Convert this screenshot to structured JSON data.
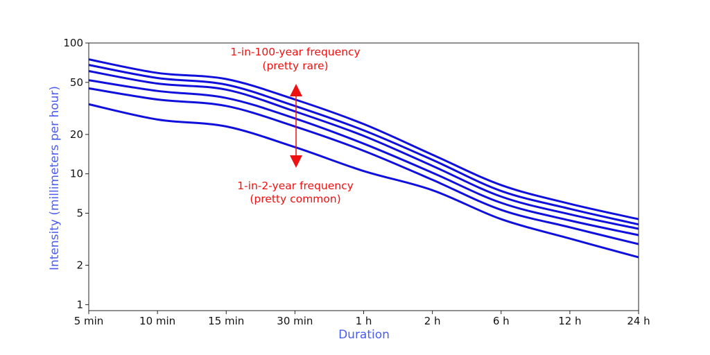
{
  "chart_data": {
    "type": "line",
    "xlabel": "Duration",
    "ylabel": "Intensity (millimeters per hour)",
    "y_scale": "log",
    "ylim": [
      0.9,
      100
    ],
    "y_ticks": [
      1,
      2,
      5,
      10,
      20,
      50,
      100
    ],
    "x_categories": [
      "5 min",
      "10 min",
      "15 min",
      "30 min",
      "1 h",
      "2 h",
      "6 h",
      "12 h",
      "24 h"
    ],
    "grid": false,
    "colors": {
      "series": "#1010dd",
      "axis_title": "#4a5cf0",
      "annotation": "#ee1111"
    },
    "series": [
      {
        "values": [
          75,
          59,
          53,
          37,
          24,
          14,
          8.2,
          5.9,
          4.5
        ]
      },
      {
        "values": [
          68,
          54,
          48,
          33,
          21.5,
          12.8,
          7.4,
          5.4,
          4.1
        ]
      },
      {
        "values": [
          61,
          49,
          44,
          30,
          19.5,
          11.5,
          6.7,
          4.9,
          3.8
        ]
      },
      {
        "values": [
          52,
          43,
          38,
          26.5,
          17,
          10.2,
          6.0,
          4.4,
          3.4
        ]
      },
      {
        "values": [
          45,
          37,
          33,
          23,
          15,
          9.0,
          5.3,
          3.9,
          2.9
        ]
      },
      {
        "values": [
          34,
          26,
          23,
          16,
          10.5,
          7.5,
          4.5,
          3.2,
          2.3
        ]
      }
    ],
    "annotations": {
      "top_line1": "1-in-100-year frequency",
      "top_line2": "(pretty rare)",
      "bottom_line1": "1-in-2-year frequency",
      "bottom_line2": "(pretty common)"
    }
  }
}
